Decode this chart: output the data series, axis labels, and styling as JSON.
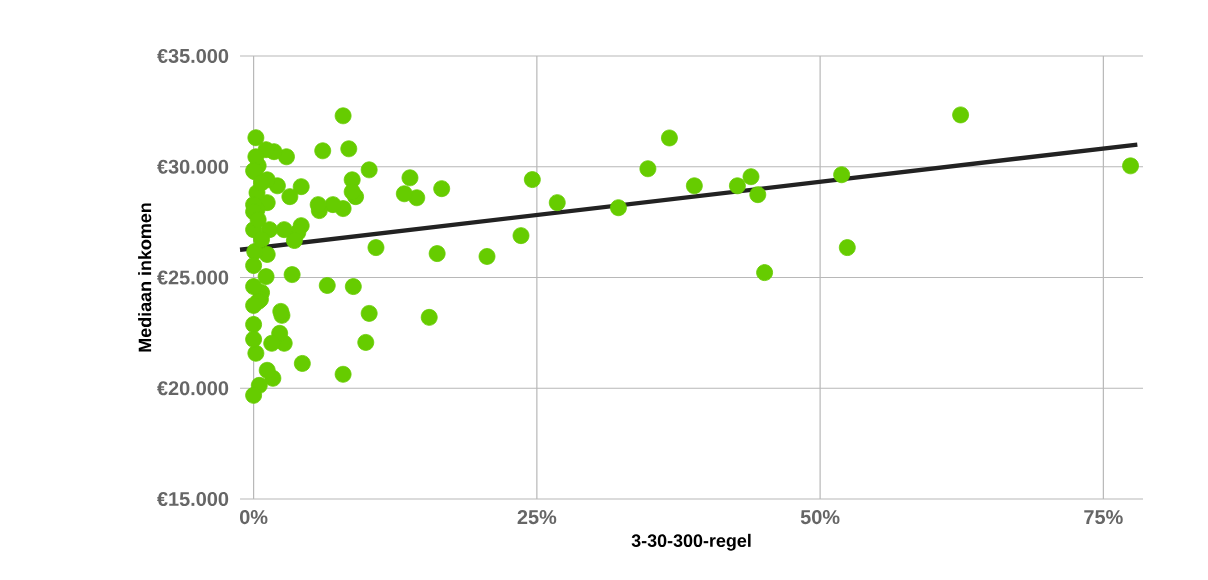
{
  "chart_data": {
    "type": "scatter",
    "xlabel": "3-30-300-regel",
    "ylabel": "Mediaan inkomen",
    "xlim": [
      -1.2,
      78.5
    ],
    "ylim": [
      15000,
      35000
    ],
    "xticks": [
      {
        "value": 0,
        "label": "0%"
      },
      {
        "value": 25,
        "label": "25%"
      },
      {
        "value": 50,
        "label": "50%"
      },
      {
        "value": 75,
        "label": "75%"
      }
    ],
    "yticks": [
      {
        "value": 15000,
        "label": "€15.000"
      },
      {
        "value": 20000,
        "label": "€20.000"
      },
      {
        "value": 25000,
        "label": "€25.000"
      },
      {
        "value": 30000,
        "label": "€30.000"
      },
      {
        "value": 35000,
        "label": "€35.000"
      }
    ],
    "grid": true,
    "marker": "circle",
    "series": [
      {
        "color": "#66cc00",
        "x": [
          77.4,
          62.4,
          52.4,
          51.9,
          45.1,
          44.5,
          43.9,
          42.7,
          38.9,
          36.7,
          34.8,
          32.2,
          26.8,
          24.6,
          23.6,
          20.6,
          16.6,
          16.2,
          15.5,
          14.4,
          13.8,
          13.3,
          10.8,
          10.2,
          10.2,
          9.9,
          9.0,
          8.7,
          8.7,
          8.8,
          8.4,
          7.9,
          7.9,
          7.9,
          7.0,
          6.5,
          6.1,
          5.8,
          5.7,
          4.3,
          4.2,
          4.2,
          3.9,
          3.6,
          3.4,
          3.2,
          2.9,
          2.7,
          2.7,
          2.5,
          2.4,
          2.3,
          2.1,
          1.8,
          1.7,
          1.6,
          1.4,
          1.2,
          1.2,
          1.2,
          1.1,
          1.1,
          1.2,
          0.7,
          0.5,
          0.6,
          0.4,
          0.4,
          0.2,
          0.2,
          0.2,
          0.3,
          0.3,
          0.1,
          0.1,
          0.0,
          0.0,
          0.0,
          0.0,
          0.0,
          0.0,
          0.0,
          0.0,
          0.0,
          0.0,
          0.7,
          0.7,
          0.4
        ],
        "values": [
          30040,
          32340,
          26350,
          29640,
          25220,
          28740,
          29550,
          29140,
          29140,
          31300,
          29910,
          28150,
          28380,
          29420,
          26890,
          25950,
          29010,
          26080,
          23200,
          28600,
          29500,
          28780,
          26350,
          29860,
          23380,
          22070,
          28650,
          29410,
          28870,
          24590,
          30810,
          32300,
          28110,
          20630,
          28290,
          24640,
          30720,
          28020,
          28290,
          21120,
          27340,
          29100,
          27030,
          26670,
          25130,
          28650,
          30450,
          27160,
          22030,
          23290,
          23470,
          22480,
          29140,
          30680,
          20450,
          22030,
          27160,
          20810,
          28380,
          26040,
          25040,
          30770,
          29410,
          24320,
          20130,
          24010,
          30050,
          23920,
          31310,
          30450,
          21580,
          28830,
          28060,
          29770,
          26170,
          28290,
          27160,
          25540,
          24590,
          23740,
          22880,
          22210,
          19680,
          27970,
          29820,
          29280,
          26710,
          27610
        ]
      },
      {
        "type": "line",
        "color": "#222222",
        "line_style": "solid",
        "marker": "none",
        "x": [
          -1.2,
          78
        ],
        "values": [
          26250,
          31000
        ]
      }
    ]
  }
}
